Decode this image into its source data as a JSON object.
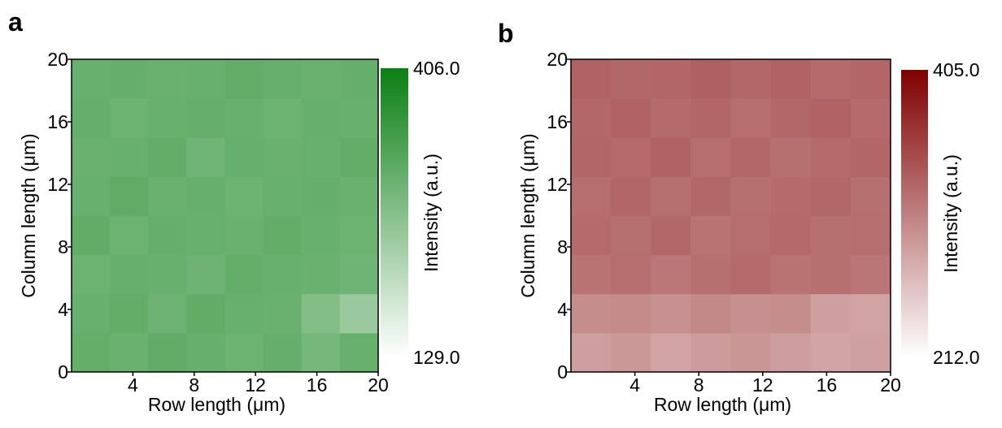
{
  "chart_data": [
    {
      "type": "heatmap",
      "panel_label": "a",
      "x_label": "Row length (μm)",
      "y_label": "Column length (μm)",
      "xlim": [
        0,
        20
      ],
      "ylim": [
        0,
        20
      ],
      "xticks": [
        4,
        8,
        12,
        16,
        20
      ],
      "yticks": [
        0,
        4,
        8,
        12,
        16,
        20
      ],
      "z": [
        [
          305,
          298,
          310,
          302,
          296,
          304,
          285,
          300
        ],
        [
          300,
          306,
          295,
          308,
          300,
          298,
          270,
          245
        ],
        [
          296,
          302,
          300,
          294,
          305,
          300,
          298,
          292
        ],
        [
          308,
          296,
          304,
          300,
          298,
          306,
          300,
          296
        ],
        [
          300,
          310,
          298,
          302,
          296,
          300,
          304,
          298
        ],
        [
          298,
          300,
          306,
          290,
          302,
          298,
          300,
          306
        ],
        [
          304,
          296,
          300,
          304,
          300,
          296,
          302,
          300
        ],
        [
          300,
          304,
          298,
          300,
          306,
          302,
          298,
          304
        ]
      ],
      "colormap": [
        "#ffffff",
        "#0b7f14"
      ],
      "colorbar": {
        "label": "Intensity (a.u.)",
        "lim": [
          129,
          406
        ],
        "ticks": [
          {
            "value": 406,
            "label": "406.0"
          },
          {
            "value": 129,
            "label": "129.0"
          }
        ]
      }
    },
    {
      "type": "heatmap",
      "panel_label": "b",
      "x_label": "Row length (μm)",
      "y_label": "Column length (μm)",
      "xlim": [
        0,
        20
      ],
      "ylim": [
        0,
        20
      ],
      "xticks": [
        4,
        8,
        12,
        16,
        20
      ],
      "yticks": [
        0,
        4,
        8,
        12,
        16,
        20
      ],
      "z": [
        [
          285,
          290,
          282,
          288,
          292,
          286,
          280,
          284
        ],
        [
          298,
          300,
          295,
          302,
          296,
          298,
          285,
          282
        ],
        [
          318,
          322,
          315,
          320,
          324,
          318,
          320,
          316
        ],
        [
          324,
          320,
          326,
          318,
          322,
          325,
          320,
          322
        ],
        [
          322,
          328,
          320,
          326,
          320,
          324,
          326,
          320
        ],
        [
          328,
          324,
          330,
          322,
          326,
          320,
          324,
          328
        ],
        [
          326,
          330,
          324,
          328,
          322,
          326,
          330,
          324
        ],
        [
          330,
          326,
          328,
          332,
          326,
          330,
          324,
          328
        ]
      ],
      "colormap": [
        "#ffffff",
        "#7f0000"
      ],
      "colorbar": {
        "label": "Intensity (a.u.)",
        "lim": [
          212,
          405
        ],
        "ticks": [
          {
            "value": 405,
            "label": "405.0"
          },
          {
            "value": 212,
            "label": "212.0"
          }
        ]
      }
    }
  ]
}
